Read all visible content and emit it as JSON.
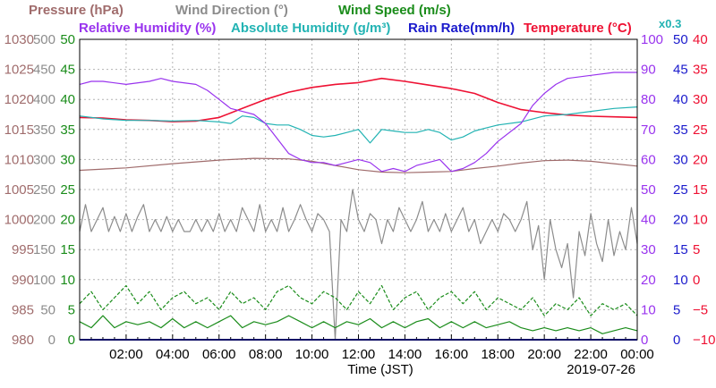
{
  "chart_data": {
    "type": "line",
    "date": "2019-07-26",
    "xlabel": "Time (JST)",
    "x_ticks": [
      "02:00",
      "04:00",
      "06:00",
      "08:00",
      "10:00",
      "12:00",
      "14:00",
      "16:00",
      "18:00",
      "20:00",
      "22:00",
      "00:00"
    ],
    "xlim_hours": [
      0,
      24
    ],
    "grid": true,
    "legend_position": "top",
    "legend": {
      "row1": [
        {
          "label": "Pressure (hPa)",
          "color": "#a06c6c"
        },
        {
          "label": "Wind Direction (°)",
          "color": "#8c8c8c"
        },
        {
          "label": "Wind Speed (m/s)",
          "color": "#1a8c1a"
        }
      ],
      "row2": [
        {
          "label": "Relative Humidity (%)",
          "color": "#9933ee"
        },
        {
          "label": "Absolute Humidity (g/m³)",
          "color": "#22b3b3"
        },
        {
          "label": "Rain Rate(mm/h)",
          "color": "#1a1acc"
        },
        {
          "label": "Temperature (°C)",
          "color": "#ee1133"
        }
      ],
      "multiplier_note": "x0.3"
    },
    "axes": [
      {
        "name": "pressure",
        "side": "left",
        "color": "#a06c6c",
        "min": 980,
        "max": 1030,
        "ticks": [
          "980",
          "985",
          "990",
          "995",
          "1000",
          "1005",
          "1010",
          "1015",
          "1020",
          "1025",
          "1030"
        ]
      },
      {
        "name": "wind_direction",
        "side": "left",
        "color": "#8c8c8c",
        "min": 0,
        "max": 500,
        "ticks": [
          "0",
          "50",
          "100",
          "150",
          "200",
          "250",
          "300",
          "350",
          "400",
          "450",
          "500"
        ]
      },
      {
        "name": "wind_speed",
        "side": "left",
        "color": "#1a8c1a",
        "min": 0,
        "max": 50,
        "ticks": [
          "0",
          "5",
          "10",
          "15",
          "20",
          "25",
          "30",
          "35",
          "40",
          "45",
          "50"
        ]
      },
      {
        "name": "relative_humidity",
        "side": "right",
        "color": "#9933ee",
        "min": 0,
        "max": 100,
        "ticks": [
          "0",
          "10",
          "20",
          "30",
          "40",
          "50",
          "60",
          "70",
          "80",
          "90",
          "100"
        ]
      },
      {
        "name": "rain_rate",
        "side": "right",
        "color": "#1a1acc",
        "min": 0,
        "max": 50,
        "ticks": [
          "0",
          "5",
          "10",
          "15",
          "20",
          "25",
          "30",
          "35",
          "40",
          "45",
          "50"
        ]
      },
      {
        "name": "temperature",
        "side": "right",
        "color": "#ee1133",
        "min": -10,
        "max": 40,
        "ticks": [
          "−10",
          "−5",
          "0",
          "5",
          "10",
          "15",
          "20",
          "25",
          "30",
          "35",
          "40"
        ]
      }
    ],
    "series": [
      {
        "name": "Pressure (hPa)",
        "axis": "pressure",
        "color": "#a06c6c",
        "x": [
          0,
          2,
          4,
          6,
          7.5,
          9,
          10,
          11,
          12,
          13,
          14,
          15,
          16,
          17,
          18,
          19,
          20,
          21,
          22,
          23,
          24
        ],
        "y": [
          1008.2,
          1008.6,
          1009.3,
          1009.9,
          1010.2,
          1010.1,
          1009.7,
          1009.0,
          1008.3,
          1007.9,
          1007.8,
          1007.9,
          1008.0,
          1008.5,
          1008.9,
          1009.4,
          1009.8,
          1009.9,
          1009.7,
          1009.3,
          1008.9
        ]
      },
      {
        "name": "Temperature (°C)",
        "axis": "temperature",
        "color": "#ee1133",
        "x": [
          0,
          1,
          2,
          3,
          4,
          5,
          6,
          7,
          8,
          9,
          10,
          11,
          12,
          13,
          14,
          15,
          16,
          17,
          18,
          19,
          20,
          21,
          22,
          23,
          24
        ],
        "y": [
          27.0,
          26.9,
          26.6,
          26.5,
          26.3,
          26.4,
          27.0,
          28.5,
          30.0,
          31.2,
          32.0,
          32.5,
          32.8,
          33.5,
          33.0,
          32.4,
          31.8,
          31.0,
          29.5,
          28.3,
          27.8,
          27.4,
          27.2,
          27.1,
          27.0
        ]
      },
      {
        "name": "Absolute Humidity (g/m³)",
        "axis": "relative_humidity",
        "multiplier": 0.3,
        "color": "#22b3b3",
        "x": [
          0,
          1,
          2,
          3,
          4,
          5,
          6,
          6.5,
          7,
          7.5,
          8,
          8.5,
          9,
          9.5,
          10,
          10.5,
          11,
          11.5,
          12,
          12.5,
          13,
          13.5,
          14,
          14.5,
          15,
          15.5,
          16,
          16.5,
          17,
          17.5,
          18,
          19,
          20,
          21,
          22,
          23,
          24
        ],
        "y": [
          74.5,
          73.5,
          73.0,
          73.0,
          72.8,
          73.0,
          72.5,
          72.0,
          74.5,
          74.0,
          72.0,
          71.5,
          71.5,
          70.0,
          68.0,
          67.5,
          68.0,
          69.0,
          70.0,
          65.5,
          70.0,
          69.5,
          69.0,
          69.0,
          70.0,
          69.0,
          66.5,
          67.5,
          69.5,
          70.5,
          71.5,
          72.5,
          74.5,
          75.0,
          76.0,
          77.0,
          77.5
        ]
      },
      {
        "name": "Relative Humidity (%)",
        "axis": "relative_humidity",
        "color": "#9933ee",
        "x": [
          0,
          0.5,
          1,
          2,
          3,
          3.5,
          4,
          5,
          5.5,
          6,
          6.5,
          7,
          7.5,
          8,
          8.5,
          9,
          9.5,
          10,
          10.5,
          11,
          11.5,
          12,
          12.5,
          13,
          13.5,
          14,
          14.5,
          15,
          15.5,
          16,
          16.5,
          17,
          17.5,
          18,
          19,
          19.5,
          20,
          20.5,
          21,
          22,
          23,
          24
        ],
        "y": [
          85,
          86,
          86,
          85,
          86,
          87,
          86,
          85,
          83,
          80,
          77,
          76,
          75,
          72,
          67,
          62,
          60,
          59,
          59,
          58,
          59,
          60,
          59,
          56,
          57,
          56,
          58,
          59,
          60,
          56,
          57,
          59,
          62,
          66,
          72,
          78,
          82,
          85,
          87,
          88,
          89,
          89
        ]
      },
      {
        "name": "Wind Direction (°)",
        "axis": "wind_direction",
        "color": "#8c8c8c",
        "x": [
          0,
          0.25,
          0.5,
          0.75,
          1,
          1.25,
          1.5,
          1.75,
          2,
          2.25,
          2.5,
          2.75,
          3,
          3.25,
          3.5,
          3.75,
          4,
          4.25,
          4.5,
          4.75,
          5,
          5.25,
          5.5,
          5.75,
          6,
          6.25,
          6.5,
          6.75,
          7,
          7.25,
          7.5,
          7.75,
          8,
          8.25,
          8.5,
          8.75,
          9,
          9.25,
          9.5,
          9.75,
          10,
          10.25,
          10.5,
          10.75,
          11,
          11.25,
          11.5,
          11.75,
          12,
          12.25,
          12.5,
          12.75,
          13,
          13.25,
          13.5,
          13.75,
          14,
          14.25,
          14.5,
          14.75,
          15,
          15.25,
          15.5,
          15.75,
          16,
          16.25,
          16.5,
          16.75,
          17,
          17.25,
          17.5,
          17.75,
          18,
          18.25,
          18.5,
          18.75,
          19,
          19.25,
          19.5,
          19.75,
          20,
          20.25,
          20.5,
          20.75,
          21,
          21.25,
          21.5,
          21.75,
          22,
          22.25,
          22.5,
          22.75,
          23,
          23.25,
          23.5,
          23.75,
          24
        ],
        "y": [
          180,
          225,
          180,
          200,
          220,
          180,
          205,
          180,
          210,
          180,
          205,
          225,
          180,
          200,
          180,
          205,
          180,
          200,
          180,
          180,
          200,
          180,
          200,
          180,
          210,
          180,
          200,
          180,
          220,
          200,
          180,
          225,
          180,
          200,
          180,
          220,
          180,
          200,
          225,
          200,
          180,
          210,
          200,
          180,
          0,
          200,
          180,
          250,
          200,
          180,
          210,
          200,
          160,
          200,
          180,
          220,
          200,
          180,
          200,
          230,
          180,
          200,
          180,
          210,
          180,
          200,
          220,
          180,
          200,
          160,
          180,
          200,
          180,
          210,
          200,
          180,
          200,
          230,
          150,
          190,
          100,
          200,
          150,
          120,
          160,
          70,
          180,
          140,
          210,
          160,
          130,
          200,
          140,
          180,
          150,
          220,
          160
        ]
      },
      {
        "name": "Wind Speed max (m/s)",
        "axis": "wind_speed",
        "color": "#1a8c1a",
        "x": [
          0,
          0.5,
          1,
          1.5,
          2,
          2.5,
          3,
          3.5,
          4,
          4.5,
          5,
          5.5,
          6,
          6.5,
          7,
          7.5,
          8,
          8.5,
          9,
          9.5,
          10,
          10.5,
          11,
          11.5,
          12,
          12.5,
          13,
          13.5,
          14,
          14.5,
          15,
          15.5,
          16,
          16.5,
          17,
          17.5,
          18,
          18.5,
          19,
          19.5,
          20,
          20.5,
          21,
          21.5,
          22,
          22.5,
          23,
          23.5,
          24
        ],
        "y": [
          6,
          8,
          5,
          7,
          9,
          6,
          8,
          5,
          7,
          8,
          6,
          7,
          5,
          8,
          6,
          7,
          5,
          8,
          9,
          7,
          6,
          8,
          7,
          5,
          8,
          6,
          9,
          5,
          7,
          8,
          5,
          7,
          8,
          6,
          8,
          5,
          7,
          6,
          5,
          7,
          4,
          6,
          5,
          7,
          4,
          6,
          5,
          6,
          4
        ]
      },
      {
        "name": "Wind Speed mean (m/s)",
        "axis": "wind_speed",
        "color": "#1a8c1a",
        "x": [
          0,
          0.5,
          1,
          1.5,
          2,
          2.5,
          3,
          3.5,
          4,
          4.5,
          5,
          5.5,
          6,
          6.5,
          7,
          7.5,
          8,
          8.5,
          9,
          9.5,
          10,
          10.5,
          11,
          11.5,
          12,
          12.5,
          13,
          13.5,
          14,
          14.5,
          15,
          15.5,
          16,
          16.5,
          17,
          17.5,
          18,
          18.5,
          19,
          19.5,
          20,
          20.5,
          21,
          21.5,
          22,
          22.5,
          23,
          23.5,
          24
        ],
        "y": [
          3,
          2,
          4,
          2,
          3,
          2.5,
          3,
          2,
          3.5,
          2,
          3,
          2,
          3,
          4,
          2,
          3,
          2.5,
          3,
          4,
          3,
          2,
          3,
          2,
          3,
          2.5,
          3.5,
          2,
          3,
          2,
          3,
          3.5,
          2,
          3,
          2,
          3,
          2,
          2.5,
          3,
          2,
          1.5,
          2,
          1.5,
          2,
          1.5,
          2,
          1,
          1.5,
          2,
          1.5
        ]
      },
      {
        "name": "Rain Rate(mm/h)",
        "axis": "rain_rate",
        "color": "#1a1acc",
        "x": [
          0,
          24
        ],
        "y": [
          0,
          0
        ]
      }
    ]
  }
}
